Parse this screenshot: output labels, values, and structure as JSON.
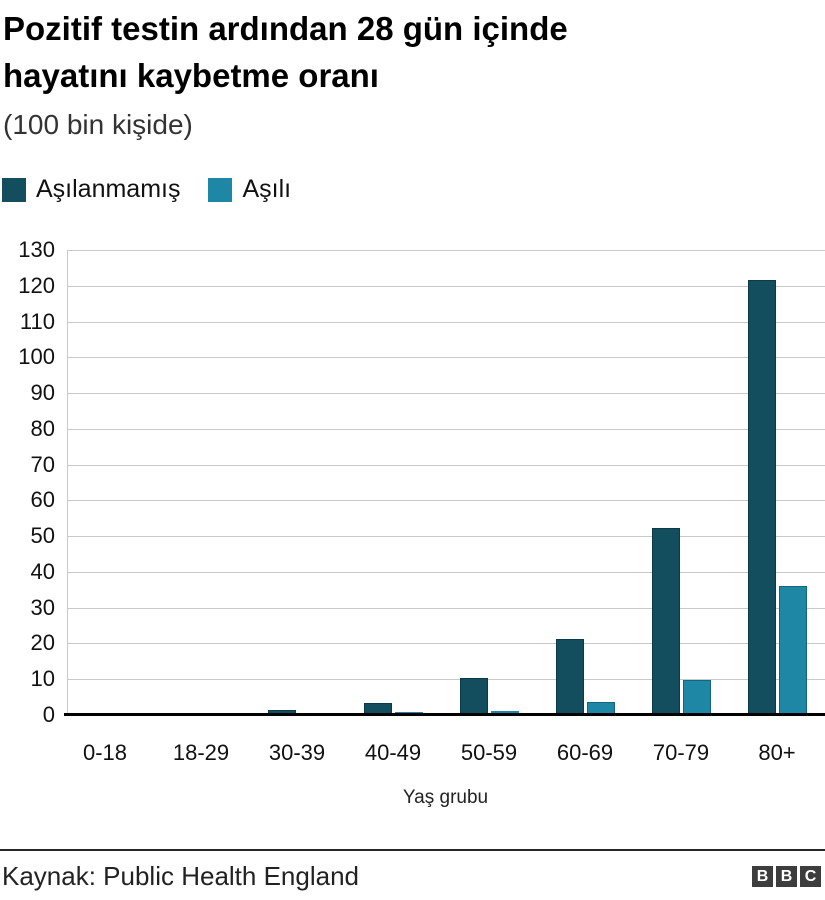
{
  "header": {
    "title_line1": "Pozitif testin ardından 28 gün içinde",
    "title_line2": "hayatını kaybetme oranı",
    "subtitle": "(100 bin kişide)"
  },
  "footer": {
    "source": "Kaynak: Public Health England",
    "logo": [
      "B",
      "B",
      "C"
    ]
  },
  "colors": {
    "unvaccinated": "#134E5F",
    "vaccinated": "#1E87A5",
    "gridline": "#C9C9C9",
    "axis_line": "#000000",
    "logo_background": "#3D3D3D"
  },
  "chart_data": {
    "type": "bar",
    "title": "Pozitif testin ardından 28 gün içinde hayatını kaybetme oranı",
    "subtitle": "(100 bin kişide)",
    "categories": [
      "0-18",
      "18-29",
      "30-39",
      "40-49",
      "50-59",
      "60-69",
      "70-79",
      "80+"
    ],
    "series": [
      {
        "name": "Aşılanmamış",
        "color": "#134E5F",
        "border_color": "#0C3A49",
        "values": [
          0,
          0,
          0.8,
          2.9,
          9.7,
          20.6,
          51.6,
          121.1
        ]
      },
      {
        "name": "Aşılı",
        "color": "#1E87A5",
        "border_color": "#14657E",
        "values": [
          0,
          0,
          0.1,
          0.3,
          0.6,
          3.2,
          9.3,
          35.6
        ]
      }
    ],
    "xlabel": "Yaş grubu",
    "ylabel": "",
    "ylim": [
      0,
      130
    ],
    "ytick_step": 10,
    "grid": true,
    "legend_position": "top-left",
    "source": "Kaynak: Public Health England"
  }
}
